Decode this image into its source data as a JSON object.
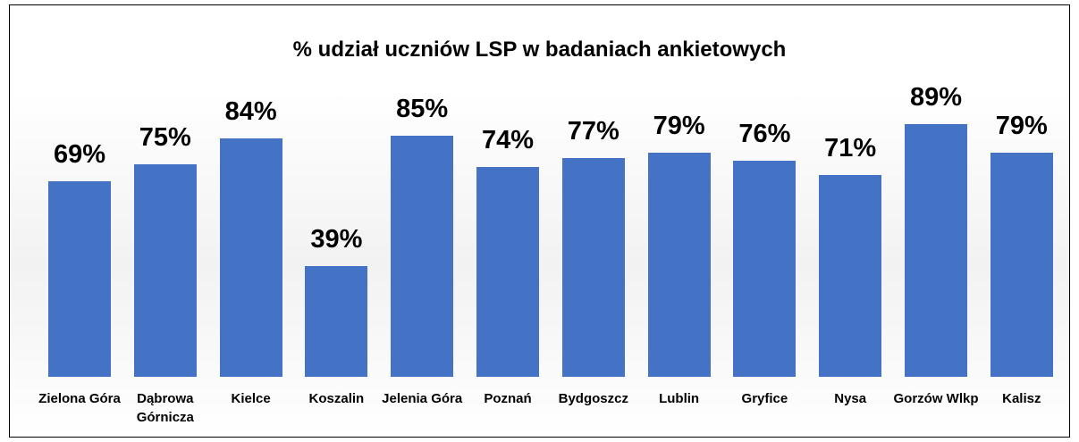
{
  "chart_data": {
    "type": "bar",
    "title": "% udział uczniów LSP w badaniach ankietowych",
    "categories": [
      "Zielona Góra",
      "Dąbrowa Górnicza",
      "Kielce",
      "Koszalin",
      "Jelenia Góra",
      "Poznań",
      "Bydgoszcz",
      "Lublin",
      "Gryfice",
      "Nysa",
      "Gorzów Wlkp",
      "Kalisz"
    ],
    "values": [
      69,
      75,
      84,
      39,
      85,
      74,
      77,
      79,
      76,
      71,
      89,
      79
    ],
    "value_labels": [
      "69%",
      "75%",
      "84%",
      "39%",
      "85%",
      "74%",
      "77%",
      "79%",
      "76%",
      "71%",
      "89%",
      "79%"
    ],
    "color": "#4472c4"
  }
}
